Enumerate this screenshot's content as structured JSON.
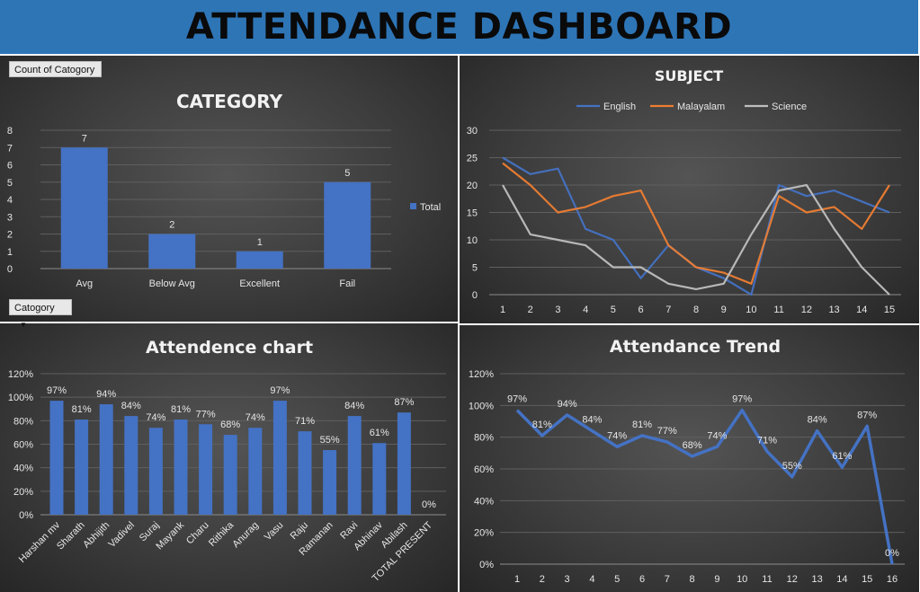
{
  "header": {
    "title": "ATTENDANCE DASHBOARD"
  },
  "controls": {
    "count_label": "Count of Catogory",
    "filter_label": "Catogory",
    "filter_arrow": "▼"
  },
  "colors": {
    "bar": "#4472c4",
    "english": "#4472c4",
    "malayalam": "#ed7d31",
    "science": "#bfbfbf",
    "trend": "#4472c4"
  },
  "chart_data": [
    {
      "id": "category",
      "type": "bar",
      "title": "CATEGORY",
      "categories": [
        "Avg",
        "Below Avg",
        "Excellent",
        "Fail"
      ],
      "series": [
        {
          "name": "Total",
          "values": [
            7,
            2,
            1,
            5
          ]
        }
      ],
      "y_ticks": [
        "0",
        "1",
        "2",
        "3",
        "4",
        "5",
        "6",
        "7",
        "8"
      ],
      "ylim": [
        0,
        8
      ],
      "grid": true,
      "legend": "right"
    },
    {
      "id": "subject",
      "type": "line",
      "title": "SUBJECT",
      "x": [
        "1",
        "2",
        "3",
        "4",
        "5",
        "6",
        "7",
        "8",
        "9",
        "10",
        "11",
        "12",
        "13",
        "14",
        "15"
      ],
      "series": [
        {
          "name": "English",
          "values": [
            25,
            22,
            23,
            12,
            10,
            3,
            9,
            5,
            3,
            0,
            20,
            18,
            19,
            17,
            15
          ]
        },
        {
          "name": "Malayalam",
          "values": [
            24,
            20,
            15,
            16,
            18,
            19,
            9,
            5,
            4,
            2,
            18,
            15,
            16,
            12,
            20
          ]
        },
        {
          "name": "Science",
          "values": [
            20,
            11,
            10,
            9,
            5,
            5,
            2,
            1,
            2,
            11,
            19,
            20,
            12,
            5,
            0
          ]
        }
      ],
      "y_ticks": [
        "0",
        "5",
        "10",
        "15",
        "20",
        "25",
        "30"
      ],
      "ylim": [
        0,
        30
      ],
      "grid": true,
      "legend": "top"
    },
    {
      "id": "attendance",
      "type": "bar",
      "title": "Attendence chart",
      "categories": [
        "Harshan mv",
        "Sharath",
        "Abhijith",
        "Vadivel",
        "Suraj",
        "Mayank",
        "Charu",
        "Rithika",
        "Anurag",
        "Vasu",
        "Raju",
        "Ramanan",
        "Ravi",
        "Abhinav",
        "Abilash",
        "TOTAL PRESENT"
      ],
      "values": [
        97,
        81,
        94,
        84,
        74,
        81,
        77,
        68,
        74,
        97,
        71,
        55,
        84,
        61,
        87,
        0
      ],
      "labels": [
        "97%",
        "81%",
        "94%",
        "84%",
        "74%",
        "81%",
        "77%",
        "68%",
        "74%",
        "97%",
        "71%",
        "55%",
        "84%",
        "61%",
        "87%",
        "0%"
      ],
      "y_ticks": [
        "0%",
        "20%",
        "40%",
        "60%",
        "80%",
        "100%",
        "120%"
      ],
      "ylim": [
        0,
        120
      ],
      "grid": true
    },
    {
      "id": "trend",
      "type": "line",
      "title": "Attendance Trend",
      "x": [
        "1",
        "2",
        "3",
        "4",
        "5",
        "6",
        "7",
        "8",
        "9",
        "10",
        "11",
        "12",
        "13",
        "14",
        "15",
        "16"
      ],
      "values": [
        97,
        81,
        94,
        84,
        74,
        81,
        77,
        68,
        74,
        97,
        71,
        55,
        84,
        61,
        87,
        0
      ],
      "labels": [
        "97%",
        "81%",
        "94%",
        "84%",
        "74%",
        "81%",
        "77%",
        "68%",
        "74%",
        "97%",
        "71%",
        "55%",
        "84%",
        "61%",
        "87%",
        "0%"
      ],
      "y_ticks": [
        "0%",
        "20%",
        "40%",
        "60%",
        "80%",
        "100%",
        "120%"
      ],
      "ylim": [
        0,
        120
      ],
      "grid": true
    }
  ]
}
